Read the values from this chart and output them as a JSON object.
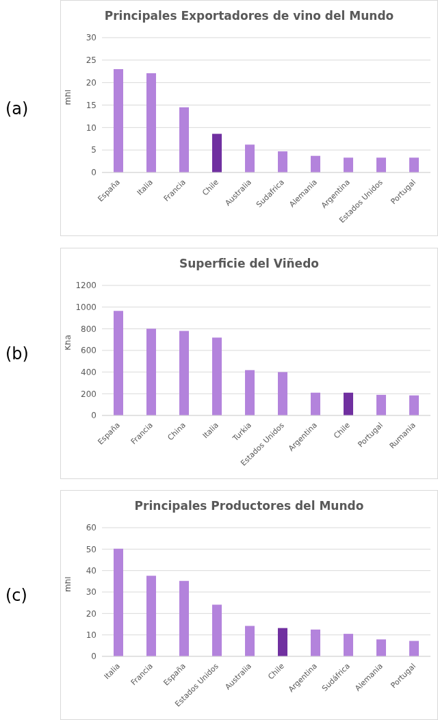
{
  "chart_data": [
    {
      "type": "bar",
      "title": "Principales Exportadores de vino del Mundo",
      "ylabel": "mhl",
      "annotations": [
        "(a)"
      ],
      "categories": [
        "España",
        "Italia",
        "Francia",
        "Chile",
        "Australia",
        "Sudafrica",
        "Alemania",
        "Argentina",
        "Estados Unidos",
        "Portugal"
      ],
      "values": [
        23,
        22.1,
        14.5,
        8.6,
        6.2,
        4.7,
        3.7,
        3.3,
        3.3,
        3.3
      ],
      "colors": [
        "#b383dc",
        "#b383dc",
        "#b383dc",
        "#7030a0",
        "#b383dc",
        "#b383dc",
        "#b383dc",
        "#b383dc",
        "#b383dc",
        "#b383dc"
      ],
      "ylim": [
        0,
        30
      ],
      "yticks": [
        0,
        5,
        10,
        15,
        20,
        25,
        30
      ],
      "grid": "y"
    },
    {
      "type": "bar",
      "title": "Superficie del Viñedo",
      "ylabel": "Kha",
      "annotations": [
        "(b)"
      ],
      "categories": [
        "España",
        "Francia",
        "China",
        "Italia",
        "Turkia",
        "Estados Unidos",
        "Argentina",
        "Chile",
        "Portugal",
        "Rumania"
      ],
      "values": [
        965,
        800,
        780,
        718,
        418,
        400,
        210,
        210,
        190,
        185
      ],
      "colors": [
        "#b383dc",
        "#b383dc",
        "#b383dc",
        "#b383dc",
        "#b383dc",
        "#b383dc",
        "#b383dc",
        "#7030a0",
        "#b383dc",
        "#b383dc"
      ],
      "ylim": [
        0,
        1200
      ],
      "yticks": [
        0,
        200,
        400,
        600,
        800,
        1000,
        1200
      ],
      "grid": "y"
    },
    {
      "type": "bar",
      "title": "Principales Productores del Mundo",
      "ylabel": "mhl",
      "annotations": [
        "(c)"
      ],
      "categories": [
        "Italia",
        "Francia",
        "España",
        "Estados Unidos",
        "Australia",
        "Chile",
        "Argentina",
        "Sudáfrica",
        "Alemania",
        "Portugal"
      ],
      "values": [
        50.2,
        37.6,
        35.2,
        24.1,
        14.2,
        13.2,
        12.5,
        10.5,
        7.9,
        7.2
      ],
      "colors": [
        "#b383dc",
        "#b383dc",
        "#b383dc",
        "#b383dc",
        "#b383dc",
        "#7030a0",
        "#b383dc",
        "#b383dc",
        "#b383dc",
        "#b383dc"
      ],
      "ylim": [
        0,
        60
      ],
      "yticks": [
        0,
        10,
        20,
        30,
        40,
        50,
        60
      ],
      "grid": "y"
    }
  ]
}
